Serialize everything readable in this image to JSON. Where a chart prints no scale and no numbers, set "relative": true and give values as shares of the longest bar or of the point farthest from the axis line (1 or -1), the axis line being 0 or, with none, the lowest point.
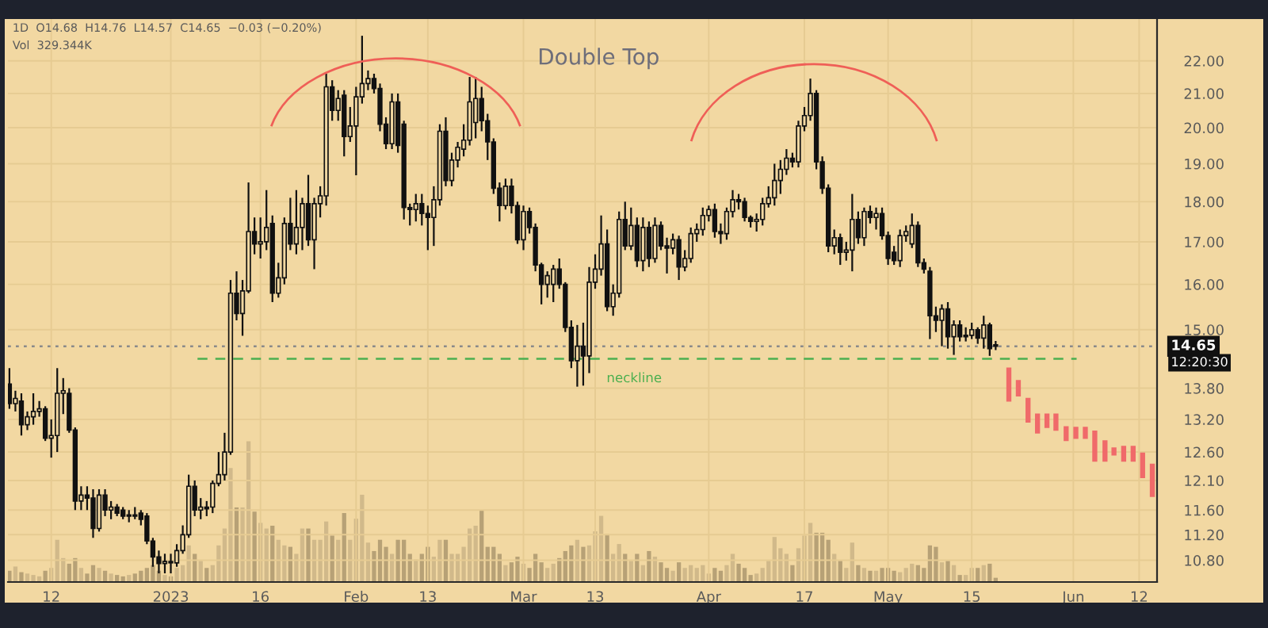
{
  "chart_data": [
    {
      "type": "candlestick",
      "title": "Double Top",
      "subtitle": "1D  O14.68  H14.76  L14.57  C14.65  −0.03 (−0.20%)",
      "annotations": [
        "Vol  329.344K",
        "12:20:30"
      ],
      "log": true,
      "grid": true,
      "xlim": [
        "2022-12-04T18:00",
        "2023-06-15"
      ],
      "xticks": [
        {
          "value": "2022-12-12",
          "label": "12"
        },
        {
          "value": "2023-01-01",
          "label": "2023"
        },
        {
          "value": "2023-01-16",
          "label": "16"
        },
        {
          "value": "2023-02-01",
          "label": "Feb"
        },
        {
          "value": "2023-02-13",
          "label": "13"
        },
        {
          "value": "2023-03-01",
          "label": "Mar"
        },
        {
          "value": "2023-03-13",
          "label": "13"
        },
        {
          "value": "2023-04-01",
          "label": "Apr"
        },
        {
          "value": "2023-04-17",
          "label": "17"
        },
        {
          "value": "2023-05-01",
          "label": "May"
        },
        {
          "value": "2023-05-15",
          "label": "15"
        },
        {
          "value": "2023-06-01",
          "label": "Jun"
        },
        {
          "value": "2023-06-12",
          "label": "12"
        }
      ],
      "ylim": [
        10.47,
        23.35
      ],
      "yticks": [
        {
          "value": 10.8,
          "label": "10.80"
        },
        {
          "value": 11.2,
          "label": "11.20"
        },
        {
          "value": 11.6,
          "label": "11.60"
        },
        {
          "value": 12.1,
          "label": "12.10"
        },
        {
          "value": 12.6,
          "label": "12.60"
        },
        {
          "value": 13.2,
          "label": "13.20"
        },
        {
          "value": 13.8,
          "label": "13.80"
        },
        {
          "value": 15,
          "label": "15.00"
        },
        {
          "value": 16,
          "label": "16.00"
        },
        {
          "value": 17,
          "label": "17.00"
        },
        {
          "value": 18,
          "label": "18.00"
        },
        {
          "value": 19,
          "label": "19.00"
        },
        {
          "value": 20,
          "label": "20.00"
        },
        {
          "value": 21,
          "label": "21.00"
        },
        {
          "value": 22,
          "label": "22.00"
        }
      ],
      "ref_lines": [
        {
          "axis": "y",
          "value": 14.65,
          "label": "14.65",
          "color": "#8a8a8a",
          "line_style": "dotted"
        },
        {
          "axis": "y",
          "value": 14.39,
          "label": "neckline",
          "color": "#4caf50",
          "line_style": "dashed"
        }
      ],
      "series": [
        {
          "type": "candlestick",
          "color": "#111111",
          "x": [
            "2022-12-05",
            "2022-12-06",
            "2022-12-07",
            "2022-12-08",
            "2022-12-09",
            "2022-12-10",
            "2022-12-11",
            "2022-12-12",
            "2022-12-13",
            "2022-12-14",
            "2022-12-15",
            "2022-12-16",
            "2022-12-17",
            "2022-12-18",
            "2022-12-19",
            "2022-12-20",
            "2022-12-21",
            "2022-12-22",
            "2022-12-23",
            "2022-12-24",
            "2022-12-25",
            "2022-12-26",
            "2022-12-27",
            "2022-12-28",
            "2022-12-29",
            "2022-12-30",
            "2022-12-31",
            "2023-01-01",
            "2023-01-02",
            "2023-01-03",
            "2023-01-04",
            "2023-01-05",
            "2023-01-06",
            "2023-01-07",
            "2023-01-08",
            "2023-01-09",
            "2023-01-10",
            "2023-01-11",
            "2023-01-12",
            "2023-01-13",
            "2023-01-14",
            "2023-01-15",
            "2023-01-16",
            "2023-01-17",
            "2023-01-18",
            "2023-01-19",
            "2023-01-20",
            "2023-01-21",
            "2023-01-22",
            "2023-01-23",
            "2023-01-24",
            "2023-01-25",
            "2023-01-26",
            "2023-01-27",
            "2023-01-28",
            "2023-01-29",
            "2023-01-30",
            "2023-01-31",
            "2023-02-01",
            "2023-02-02",
            "2023-02-03",
            "2023-02-04",
            "2023-02-05",
            "2023-02-06",
            "2023-02-07",
            "2023-02-08",
            "2023-02-09",
            "2023-02-10",
            "2023-02-11",
            "2023-02-12",
            "2023-02-13",
            "2023-02-14",
            "2023-02-15",
            "2023-02-16",
            "2023-02-17",
            "2023-02-18",
            "2023-02-19",
            "2023-02-20",
            "2023-02-21",
            "2023-02-22",
            "2023-02-23",
            "2023-02-24",
            "2023-02-25",
            "2023-02-26",
            "2023-02-27",
            "2023-02-28",
            "2023-03-01",
            "2023-03-02",
            "2023-03-03",
            "2023-03-04",
            "2023-03-05",
            "2023-03-06",
            "2023-03-07",
            "2023-03-08",
            "2023-03-09",
            "2023-03-10",
            "2023-03-11",
            "2023-03-12",
            "2023-03-13",
            "2023-03-14",
            "2023-03-15",
            "2023-03-16",
            "2023-03-17",
            "2023-03-18",
            "2023-03-19",
            "2023-03-20",
            "2023-03-21",
            "2023-03-22",
            "2023-03-23",
            "2023-03-24",
            "2023-03-25",
            "2023-03-26",
            "2023-03-27",
            "2023-03-28",
            "2023-03-29",
            "2023-03-30",
            "2023-03-31",
            "2023-04-01",
            "2023-04-02",
            "2023-04-03",
            "2023-04-04",
            "2023-04-05",
            "2023-04-06",
            "2023-04-07",
            "2023-04-08",
            "2023-04-09",
            "2023-04-10",
            "2023-04-11",
            "2023-04-12",
            "2023-04-13",
            "2023-04-14",
            "2023-04-15",
            "2023-04-16",
            "2023-04-17",
            "2023-04-18",
            "2023-04-19",
            "2023-04-20",
            "2023-04-21",
            "2023-04-22",
            "2023-04-23",
            "2023-04-24",
            "2023-04-25",
            "2023-04-26",
            "2023-04-27",
            "2023-04-28",
            "2023-04-29",
            "2023-04-30",
            "2023-05-01",
            "2023-05-02",
            "2023-05-03",
            "2023-05-04",
            "2023-05-05",
            "2023-05-06",
            "2023-05-07",
            "2023-05-08",
            "2023-05-09",
            "2023-05-10",
            "2023-05-11",
            "2023-05-12",
            "2023-05-13",
            "2023-05-14",
            "2023-05-15",
            "2023-05-16",
            "2023-05-17",
            "2023-05-18",
            "2023-05-19"
          ],
          "ohlc": [
            [
              13.88,
              14.2,
              13.4,
              13.5
            ],
            [
              13.5,
              13.75,
              13.35,
              13.6
            ],
            [
              13.55,
              13.7,
              12.9,
              13.1
            ],
            [
              13.1,
              13.35,
              13.0,
              13.25
            ],
            [
              13.25,
              13.7,
              13.1,
              13.35
            ],
            [
              13.35,
              13.55,
              13.25,
              13.4
            ],
            [
              13.4,
              13.45,
              12.8,
              12.85
            ],
            [
              12.85,
              13.2,
              12.5,
              12.9
            ],
            [
              12.9,
              14.2,
              12.6,
              13.7
            ],
            [
              13.7,
              14.0,
              13.3,
              13.75
            ],
            [
              13.7,
              13.8,
              12.95,
              13.0
            ],
            [
              13.0,
              13.05,
              11.6,
              11.75
            ],
            [
              11.75,
              12.0,
              11.6,
              11.85
            ],
            [
              11.85,
              12.0,
              11.6,
              11.8
            ],
            [
              11.8,
              11.95,
              11.15,
              11.3
            ],
            [
              11.3,
              11.95,
              11.25,
              11.85
            ],
            [
              11.85,
              11.95,
              11.5,
              11.6
            ],
            [
              11.6,
              11.75,
              11.45,
              11.65
            ],
            [
              11.65,
              11.7,
              11.5,
              11.55
            ],
            [
              11.6,
              11.65,
              11.45,
              11.5
            ],
            [
              11.5,
              11.6,
              11.4,
              11.52
            ],
            [
              11.52,
              11.65,
              11.45,
              11.5
            ],
            [
              11.55,
              11.6,
              11.35,
              11.45
            ],
            [
              11.5,
              11.55,
              11.05,
              11.1
            ],
            [
              11.1,
              11.15,
              10.7,
              10.85
            ],
            [
              10.85,
              10.95,
              10.6,
              10.75
            ],
            [
              10.75,
              10.9,
              10.6,
              10.78
            ],
            [
              10.78,
              10.9,
              10.6,
              10.76
            ],
            [
              10.76,
              11.05,
              10.7,
              10.95
            ],
            [
              10.95,
              11.35,
              10.9,
              11.2
            ],
            [
              11.2,
              12.2,
              11.15,
              12.0
            ],
            [
              12.0,
              12.1,
              11.5,
              11.6
            ],
            [
              11.6,
              11.8,
              11.45,
              11.65
            ],
            [
              11.65,
              11.75,
              11.5,
              11.62
            ],
            [
              11.65,
              12.1,
              11.55,
              12.05
            ],
            [
              12.05,
              12.6,
              12.0,
              12.2
            ],
            [
              12.2,
              12.95,
              12.1,
              12.6
            ],
            [
              12.6,
              16.1,
              12.55,
              15.8
            ],
            [
              15.8,
              16.3,
              15.2,
              15.35
            ],
            [
              15.35,
              16.1,
              14.87,
              15.85
            ],
            [
              15.85,
              18.5,
              15.8,
              17.25
            ],
            [
              17.25,
              17.6,
              16.7,
              16.95
            ],
            [
              16.95,
              17.6,
              16.6,
              17.0
            ],
            [
              17.0,
              18.3,
              16.8,
              17.35
            ],
            [
              17.45,
              17.65,
              15.6,
              15.8
            ],
            [
              15.8,
              16.5,
              15.7,
              16.15
            ],
            [
              16.15,
              17.6,
              16.0,
              17.45
            ],
            [
              17.45,
              18.1,
              16.8,
              16.95
            ],
            [
              16.95,
              18.3,
              16.7,
              17.35
            ],
            [
              17.35,
              18.1,
              16.8,
              17.95
            ],
            [
              17.95,
              18.7,
              16.9,
              17.05
            ],
            [
              17.05,
              18.1,
              16.35,
              17.95
            ],
            [
              17.95,
              18.4,
              17.6,
              18.15
            ],
            [
              18.15,
              21.6,
              17.9,
              21.2
            ],
            [
              21.2,
              21.4,
              20.2,
              20.5
            ],
            [
              20.5,
              21.1,
              20.2,
              20.85
            ],
            [
              20.95,
              21.1,
              19.2,
              19.75
            ],
            [
              19.75,
              20.6,
              19.6,
              20.05
            ],
            [
              20.05,
              21.2,
              18.69,
              20.9
            ],
            [
              20.9,
              22.8,
              20.7,
              21.3
            ],
            [
              21.3,
              21.7,
              21.1,
              21.45
            ],
            [
              21.45,
              21.6,
              21.0,
              21.15
            ],
            [
              21.15,
              21.3,
              19.9,
              20.1
            ],
            [
              20.1,
              20.3,
              19.4,
              19.55
            ],
            [
              19.55,
              21.0,
              19.4,
              20.75
            ],
            [
              20.75,
              21.0,
              19.3,
              19.5
            ],
            [
              20.1,
              20.2,
              17.55,
              17.85
            ],
            [
              17.85,
              17.95,
              17.4,
              17.8
            ],
            [
              17.8,
              18.2,
              17.5,
              17.95
            ],
            [
              17.95,
              18.2,
              17.4,
              17.7
            ],
            [
              17.7,
              17.9,
              16.8,
              17.6
            ],
            [
              17.6,
              18.4,
              16.9,
              18.05
            ],
            [
              18.05,
              20.1,
              17.9,
              19.9
            ],
            [
              19.9,
              20.3,
              18.4,
              18.55
            ],
            [
              18.55,
              19.3,
              18.4,
              19.1
            ],
            [
              19.1,
              19.6,
              18.9,
              19.45
            ],
            [
              19.4,
              20.1,
              19.2,
              19.65
            ],
            [
              19.65,
              21.5,
              19.5,
              20.75
            ],
            [
              20.15,
              21.5,
              19.7,
              20.85
            ],
            [
              20.85,
              21.2,
              19.9,
              20.2
            ],
            [
              20.2,
              20.4,
              19.1,
              19.6
            ],
            [
              19.6,
              19.7,
              18.2,
              18.35
            ],
            [
              18.35,
              18.5,
              17.5,
              17.9
            ],
            [
              17.9,
              18.6,
              17.8,
              18.4
            ],
            [
              18.4,
              18.6,
              17.7,
              17.9
            ],
            [
              17.9,
              18.0,
              16.95,
              17.05
            ],
            [
              17.05,
              17.9,
              16.8,
              17.75
            ],
            [
              17.75,
              17.85,
              17.2,
              17.35
            ],
            [
              17.35,
              17.45,
              16.3,
              16.45
            ],
            [
              16.45,
              16.5,
              15.55,
              16.0
            ],
            [
              16.0,
              16.3,
              15.7,
              16.2
            ],
            [
              16.0,
              16.45,
              15.6,
              16.35
            ],
            [
              16.35,
              16.6,
              15.9,
              16.0
            ],
            [
              16.0,
              16.05,
              14.95,
              15.05
            ],
            [
              15.05,
              15.2,
              14.2,
              14.35
            ],
            [
              14.35,
              15.1,
              13.83,
              14.65
            ],
            [
              14.65,
              15.15,
              13.85,
              14.45
            ],
            [
              14.45,
              16.4,
              14.1,
              16.05
            ],
            [
              16.05,
              16.7,
              15.9,
              16.35
            ],
            [
              16.35,
              17.65,
              16.2,
              16.95
            ],
            [
              16.95,
              17.3,
              15.4,
              15.5
            ],
            [
              15.5,
              16.0,
              15.3,
              15.8
            ],
            [
              15.8,
              17.75,
              15.7,
              17.55
            ],
            [
              17.55,
              18.0,
              16.8,
              16.9
            ],
            [
              16.9,
              17.85,
              16.8,
              17.4
            ],
            [
              17.4,
              17.6,
              16.4,
              16.55
            ],
            [
              16.55,
              17.6,
              16.3,
              17.35
            ],
            [
              17.35,
              17.5,
              16.4,
              16.6
            ],
            [
              16.6,
              17.6,
              16.5,
              17.4
            ],
            [
              17.4,
              17.5,
              16.8,
              16.9
            ],
            [
              16.9,
              17.1,
              16.25,
              16.85
            ],
            [
              16.85,
              17.2,
              16.7,
              17.05
            ],
            [
              17.05,
              17.15,
              16.1,
              16.4
            ],
            [
              16.4,
              16.8,
              16.3,
              16.6
            ],
            [
              16.6,
              17.35,
              16.5,
              17.2
            ],
            [
              17.2,
              17.45,
              17.0,
              17.3
            ],
            [
              17.3,
              17.85,
              17.15,
              17.65
            ],
            [
              17.65,
              17.9,
              17.5,
              17.8
            ],
            [
              17.8,
              17.95,
              17.1,
              17.25
            ],
            [
              17.25,
              17.45,
              16.95,
              17.2
            ],
            [
              17.2,
              17.85,
              17.05,
              17.75
            ],
            [
              17.75,
              18.3,
              17.6,
              18.05
            ],
            [
              18.05,
              18.2,
              17.8,
              18.0
            ],
            [
              18.0,
              18.1,
              17.5,
              17.6
            ],
            [
              17.6,
              17.65,
              17.35,
              17.5
            ],
            [
              17.5,
              17.7,
              17.25,
              17.55
            ],
            [
              17.55,
              18.1,
              17.4,
              17.95
            ],
            [
              17.95,
              18.4,
              17.85,
              18.1
            ],
            [
              18.1,
              19.0,
              17.9,
              18.55
            ],
            [
              18.55,
              19.1,
              18.2,
              18.85
            ],
            [
              18.85,
              19.4,
              18.7,
              19.15
            ],
            [
              19.15,
              19.3,
              18.9,
              19.05
            ],
            [
              19.05,
              20.2,
              18.9,
              20.05
            ],
            [
              20.05,
              20.6,
              19.9,
              20.35
            ],
            [
              20.35,
              21.45,
              20.2,
              21.0
            ],
            [
              21.0,
              21.1,
              18.85,
              19.05
            ],
            [
              19.05,
              19.2,
              18.2,
              18.35
            ],
            [
              18.35,
              18.45,
              16.75,
              16.9
            ],
            [
              16.9,
              17.3,
              16.7,
              17.1
            ],
            [
              17.1,
              17.2,
              16.45,
              16.75
            ],
            [
              16.75,
              17.0,
              16.55,
              16.8
            ],
            [
              16.8,
              18.2,
              16.3,
              17.55
            ],
            [
              17.55,
              17.75,
              16.95,
              17.1
            ],
            [
              17.1,
              17.85,
              16.9,
              17.75
            ],
            [
              17.75,
              17.9,
              17.45,
              17.6
            ],
            [
              17.6,
              17.85,
              17.3,
              17.7
            ],
            [
              17.7,
              17.85,
              17.05,
              17.15
            ],
            [
              17.15,
              17.25,
              16.45,
              16.6
            ],
            [
              16.75,
              16.9,
              16.45,
              16.55
            ],
            [
              16.55,
              17.3,
              16.4,
              17.15
            ],
            [
              17.15,
              17.4,
              17.0,
              17.25
            ],
            [
              16.95,
              17.7,
              16.85,
              17.4
            ],
            [
              17.4,
              17.5,
              16.4,
              16.5
            ],
            [
              16.5,
              16.6,
              16.25,
              16.35
            ],
            [
              16.3,
              16.4,
              14.8,
              15.3
            ],
            [
              15.3,
              15.5,
              14.95,
              15.2
            ],
            [
              15.2,
              15.55,
              14.65,
              15.45
            ],
            [
              15.45,
              15.6,
              14.6,
              14.85
            ],
            [
              14.85,
              15.2,
              14.47,
              15.1
            ],
            [
              15.1,
              15.2,
              14.75,
              14.85
            ],
            [
              14.85,
              15.05,
              14.75,
              14.88
            ],
            [
              14.88,
              15.15,
              14.8,
              15.0
            ],
            [
              15.0,
              15.05,
              14.7,
              14.82
            ],
            [
              14.82,
              15.3,
              14.6,
              15.1
            ],
            [
              15.1,
              15.15,
              14.45,
              14.6
            ],
            [
              14.68,
              14.76,
              14.57,
              14.65
            ]
          ]
        },
        {
          "type": "candlestick",
          "color": "#f06a6a",
          "x": [
            "2023-05-21T05:00",
            "2023-05-22T19:00",
            "2023-05-24T10:00",
            "2023-05-26T00:00",
            "2023-05-27T14:00",
            "2023-05-29T02:00",
            "2023-05-30T19:00",
            "2023-06-01T10:00",
            "2023-06-03T00:00",
            "2023-06-04T14:00",
            "2023-06-06T07:00",
            "2023-06-07T19:00",
            "2023-06-09T10:00",
            "2023-06-11T00:00",
            "2023-06-12T14:00",
            "2023-06-14T05:00"
          ],
          "ohlc": [
            [
              14.2,
              14.2,
              13.55,
              13.55
            ],
            [
              13.95,
              13.95,
              13.65,
              13.65
            ],
            [
              13.6,
              13.6,
              13.15,
              13.15
            ],
            [
              13.3,
              13.3,
              12.95,
              12.95
            ],
            [
              13.3,
              13.3,
              13.05,
              13.05
            ],
            [
              13.3,
              13.3,
              13.0,
              13.0
            ],
            [
              13.06,
              13.06,
              12.81,
              12.81
            ],
            [
              13.05,
              13.05,
              12.85,
              12.85
            ],
            [
              13.05,
              13.05,
              12.85,
              12.85
            ],
            [
              12.98,
              12.98,
              12.44,
              12.44
            ],
            [
              12.8,
              12.8,
              12.44,
              12.44
            ],
            [
              12.67,
              12.67,
              12.55,
              12.55
            ],
            [
              12.7,
              12.7,
              12.44,
              12.44
            ],
            [
              12.7,
              12.7,
              12.44,
              12.44
            ],
            [
              12.58,
              12.58,
              12.15,
              12.15
            ],
            [
              12.38,
              12.38,
              11.83,
              11.83
            ]
          ]
        }
      ]
    },
    {
      "type": "bar",
      "relative": true,
      "tick_labels": false,
      "color": "#a8946c",
      "xlim": [
        "2022-12-04T18:00",
        "2023-06-15"
      ],
      "x": [
        "2022-12-05",
        "2022-12-06",
        "2022-12-07",
        "2022-12-08",
        "2022-12-09",
        "2022-12-10",
        "2022-12-11",
        "2022-12-12",
        "2022-12-13",
        "2022-12-14",
        "2022-12-15",
        "2022-12-16",
        "2022-12-17",
        "2022-12-18",
        "2022-12-19",
        "2022-12-20",
        "2022-12-21",
        "2022-12-22",
        "2022-12-23",
        "2022-12-24",
        "2022-12-25",
        "2022-12-26",
        "2022-12-27",
        "2022-12-28",
        "2022-12-29",
        "2022-12-30",
        "2022-12-31",
        "2023-01-01",
        "2023-01-02",
        "2023-01-03",
        "2023-01-04",
        "2023-01-05",
        "2023-01-06",
        "2023-01-07",
        "2023-01-08",
        "2023-01-09",
        "2023-01-10",
        "2023-01-11",
        "2023-01-12",
        "2023-01-13",
        "2023-01-14",
        "2023-01-15",
        "2023-01-16",
        "2023-01-17",
        "2023-01-18",
        "2023-01-19",
        "2023-01-20",
        "2023-01-21",
        "2023-01-22",
        "2023-01-23",
        "2023-01-24",
        "2023-01-25",
        "2023-01-26",
        "2023-01-27",
        "2023-01-28",
        "2023-01-29",
        "2023-01-30",
        "2023-01-31",
        "2023-02-01",
        "2023-02-02",
        "2023-02-03",
        "2023-02-04",
        "2023-02-05",
        "2023-02-06",
        "2023-02-07",
        "2023-02-08",
        "2023-02-09",
        "2023-02-10",
        "2023-02-11",
        "2023-02-12",
        "2023-02-13",
        "2023-02-14",
        "2023-02-15",
        "2023-02-16",
        "2023-02-17",
        "2023-02-18",
        "2023-02-19",
        "2023-02-20",
        "2023-02-21",
        "2023-02-22",
        "2023-02-23",
        "2023-02-24",
        "2023-02-25",
        "2023-02-26",
        "2023-02-27",
        "2023-02-28",
        "2023-03-01",
        "2023-03-02",
        "2023-03-03",
        "2023-03-04",
        "2023-03-05",
        "2023-03-06",
        "2023-03-07",
        "2023-03-08",
        "2023-03-09",
        "2023-03-10",
        "2023-03-11",
        "2023-03-12",
        "2023-03-13",
        "2023-03-14",
        "2023-03-15",
        "2023-03-16",
        "2023-03-17",
        "2023-03-18",
        "2023-03-19",
        "2023-03-20",
        "2023-03-21",
        "2023-03-22",
        "2023-03-23",
        "2023-03-24",
        "2023-03-25",
        "2023-03-26",
        "2023-03-27",
        "2023-03-28",
        "2023-03-29",
        "2023-03-30",
        "2023-03-31",
        "2023-04-01",
        "2023-04-02",
        "2023-04-03",
        "2023-04-04",
        "2023-04-05",
        "2023-04-06",
        "2023-04-07",
        "2023-04-08",
        "2023-04-09",
        "2023-04-10",
        "2023-04-11",
        "2023-04-12",
        "2023-04-13",
        "2023-04-14",
        "2023-04-15",
        "2023-04-16",
        "2023-04-17",
        "2023-04-18",
        "2023-04-19",
        "2023-04-20",
        "2023-04-21",
        "2023-04-22",
        "2023-04-23",
        "2023-04-24",
        "2023-04-25",
        "2023-04-26",
        "2023-04-27",
        "2023-04-28",
        "2023-04-29",
        "2023-04-30",
        "2023-05-01",
        "2023-05-02",
        "2023-05-03",
        "2023-05-04",
        "2023-05-05",
        "2023-05-06",
        "2023-05-07",
        "2023-05-08",
        "2023-05-09",
        "2023-05-10",
        "2023-05-11",
        "2023-05-12",
        "2023-05-13",
        "2023-05-14",
        "2023-05-15",
        "2023-05-16",
        "2023-05-17",
        "2023-05-18",
        "2023-05-19"
      ],
      "values": [
        0.08,
        0.11,
        0.07,
        0.06,
        0.05,
        0.04,
        0.08,
        0.1,
        0.3,
        0.17,
        0.13,
        0.17,
        0.1,
        0.06,
        0.12,
        0.1,
        0.08,
        0.06,
        0.05,
        0.04,
        0.05,
        0.06,
        0.08,
        0.1,
        0.12,
        0.08,
        0.05,
        0.04,
        0.1,
        0.12,
        0.26,
        0.2,
        0.15,
        0.1,
        0.12,
        0.26,
        0.38,
        0.81,
        0.53,
        0.53,
        1,
        0.5,
        0.42,
        0.38,
        0.4,
        0.3,
        0.26,
        0.25,
        0.2,
        0.38,
        0.38,
        0.3,
        0.3,
        0.43,
        0.33,
        0.3,
        0.49,
        0.3,
        0.45,
        0.62,
        0.28,
        0.22,
        0.3,
        0.25,
        0.2,
        0.3,
        0.3,
        0.2,
        0.16,
        0.2,
        0.25,
        0.18,
        0.3,
        0.3,
        0.2,
        0.2,
        0.25,
        0.38,
        0.4,
        0.51,
        0.25,
        0.25,
        0.2,
        0.12,
        0.14,
        0.18,
        0.13,
        0.1,
        0.2,
        0.14,
        0.1,
        0.13,
        0.17,
        0.22,
        0.26,
        0.3,
        0.25,
        0.26,
        0.36,
        0.47,
        0.34,
        0.2,
        0.27,
        0.2,
        0.15,
        0.2,
        0.12,
        0.22,
        0.18,
        0.14,
        0.1,
        0.08,
        0.14,
        0.1,
        0.12,
        0.1,
        0.12,
        0.06,
        0.1,
        0.08,
        0.12,
        0.2,
        0.13,
        0.1,
        0.05,
        0.06,
        0.1,
        0.15,
        0.32,
        0.24,
        0.2,
        0.12,
        0.24,
        0.33,
        0.42,
        0.35,
        0.35,
        0.3,
        0.2,
        0.15,
        0.1,
        0.28,
        0.12,
        0.1,
        0.08,
        0.08,
        0.1,
        0.1,
        0.08,
        0.07,
        0.1,
        0.13,
        0.12,
        0.1,
        0.26,
        0.25,
        0.14,
        0.15,
        0.12,
        0.05,
        0.05,
        0.1,
        0.1,
        0.12,
        0.13,
        0.03
      ]
    }
  ]
}
